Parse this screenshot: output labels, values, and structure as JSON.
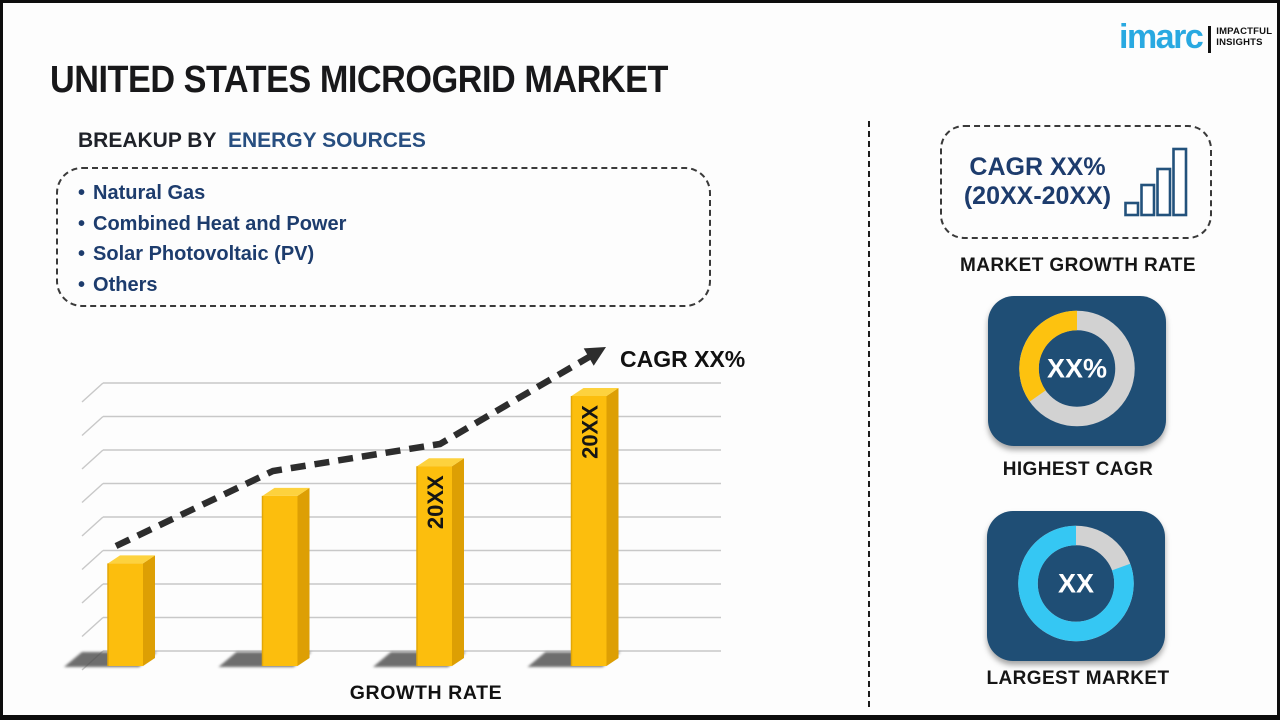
{
  "brand": {
    "logo_text": "imarc",
    "tagline_line1": "IMPACTFUL",
    "tagline_line2": "INSIGHTS",
    "logo_color": "#29a9e1"
  },
  "header": {
    "title": "UNITED STATES MICROGRID MARKET"
  },
  "breakup": {
    "heading_prefix": "BREAKUP BY",
    "heading_highlight": "ENERGY SOURCES",
    "bullet_char": "•",
    "items": [
      "Natural Gas",
      "Combined Heat and Power",
      "Solar Photovoltaic (PV)",
      "Others"
    ]
  },
  "chart_data": {
    "type": "bar",
    "title": "",
    "xlabel": "GROWTH RATE",
    "ylabel": "",
    "categories": [
      "",
      "",
      "20XX",
      "20XX"
    ],
    "values_relative_pct": [
      38,
      63,
      74,
      100
    ],
    "y_axis_labeled": false,
    "gridlines": 9,
    "bar_color": "#fcbe0d",
    "bar_top_color": "#fdd23e",
    "bar_side_color": "#dd9f04",
    "trend": {
      "style": "dashed-arrow",
      "label": "CAGR XX%",
      "color": "#2d2d2d"
    }
  },
  "right_panel": {
    "cagr_box": {
      "line1": "CAGR XX%",
      "line2": "(20XX-20XX)"
    },
    "market_growth_rate_label": "MARKET GROWTH RATE",
    "highest_cagr": {
      "value": "XX%",
      "label": "HIGHEST CAGR",
      "accent": "#fdc20f",
      "ring_base": "#d2d2d2",
      "arc_start_deg": 235,
      "arc_end_deg": 360,
      "card_color": "#1f4e75"
    },
    "largest_market": {
      "value": "XX",
      "label": "LARGEST MARKET",
      "accent": "#35c7f3",
      "ring_base": "#d2d2d2",
      "arc_start_deg": 70,
      "arc_end_deg": 360,
      "card_color": "#1f4e75"
    }
  }
}
